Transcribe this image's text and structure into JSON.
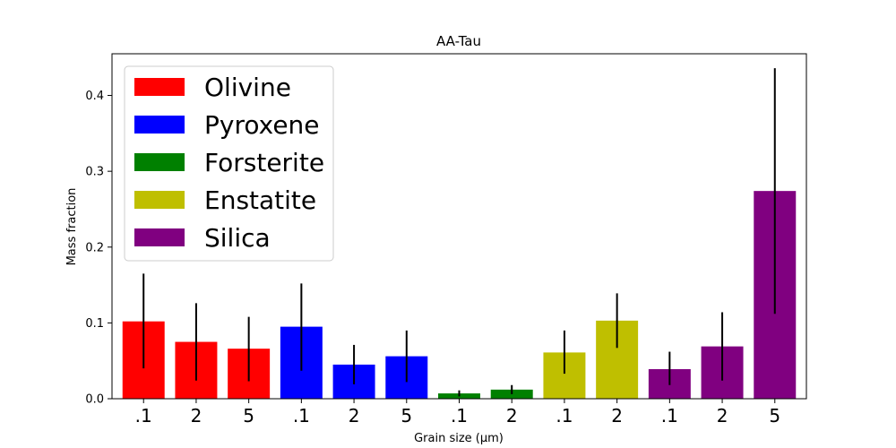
{
  "chart_data": {
    "type": "bar",
    "title": "AA-Tau",
    "xlabel": "Grain size (μm)",
    "ylabel": "Mass fraction",
    "ylim": [
      0,
      0.455
    ],
    "yticks": [
      "0.0",
      "0.1",
      "0.2",
      "0.3",
      "0.4"
    ],
    "yticks_values": [
      0.0,
      0.1,
      0.2,
      0.3,
      0.4
    ],
    "grid": false,
    "legend_position": "top-left",
    "categories": [
      ".1",
      "2",
      "5",
      ".1",
      "2",
      "5",
      ".1",
      "2",
      ".1",
      "2",
      ".1",
      "2",
      "5"
    ],
    "bars": [
      {
        "label": ".1",
        "value": 0.102,
        "err_low": 0.04,
        "err_high": 0.165,
        "series": "Olivine"
      },
      {
        "label": "2",
        "value": 0.075,
        "err_low": 0.024,
        "err_high": 0.126,
        "series": "Olivine"
      },
      {
        "label": "5",
        "value": 0.066,
        "err_low": 0.023,
        "err_high": 0.108,
        "series": "Olivine"
      },
      {
        "label": ".1",
        "value": 0.095,
        "err_low": 0.037,
        "err_high": 0.152,
        "series": "Pyroxene"
      },
      {
        "label": "2",
        "value": 0.045,
        "err_low": 0.019,
        "err_high": 0.071,
        "series": "Pyroxene"
      },
      {
        "label": "5",
        "value": 0.056,
        "err_low": 0.022,
        "err_high": 0.09,
        "series": "Pyroxene"
      },
      {
        "label": ".1",
        "value": 0.007,
        "err_low": 0.003,
        "err_high": 0.011,
        "series": "Forsterite"
      },
      {
        "label": "2",
        "value": 0.012,
        "err_low": 0.006,
        "err_high": 0.018,
        "series": "Forsterite"
      },
      {
        "label": ".1",
        "value": 0.061,
        "err_low": 0.033,
        "err_high": 0.09,
        "series": "Enstatite"
      },
      {
        "label": "2",
        "value": 0.103,
        "err_low": 0.067,
        "err_high": 0.139,
        "series": "Enstatite"
      },
      {
        "label": ".1",
        "value": 0.039,
        "err_low": 0.018,
        "err_high": 0.062,
        "series": "Silica"
      },
      {
        "label": "2",
        "value": 0.069,
        "err_low": 0.024,
        "err_high": 0.114,
        "series": "Silica"
      },
      {
        "label": "5",
        "value": 0.274,
        "err_low": 0.112,
        "err_high": 0.436,
        "series": "Silica"
      }
    ],
    "series": [
      {
        "name": "Olivine",
        "color": "#ff0000"
      },
      {
        "name": "Pyroxene",
        "color": "#0000ff"
      },
      {
        "name": "Forsterite",
        "color": "#008000"
      },
      {
        "name": "Enstatite",
        "color": "#bfbf00"
      },
      {
        "name": "Silica",
        "color": "#800080"
      }
    ]
  }
}
